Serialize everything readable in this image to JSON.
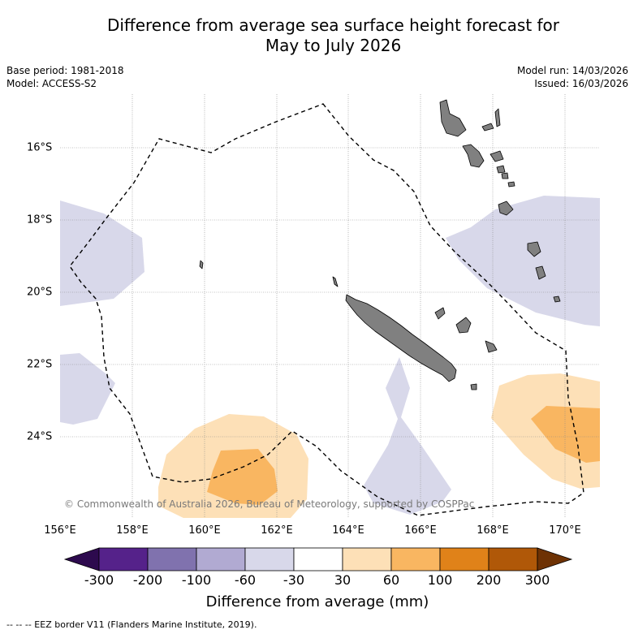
{
  "title_line1": "Difference from average sea surface height forecast for",
  "title_line2": "May to July 2026",
  "base_period": "Base period: 1981-2018",
  "model": "Model: ACCESS-S2",
  "model_run": "Model run: 14/03/2026",
  "issued": "Issued: 16/03/2026",
  "x_ticks": [
    "156°E",
    "158°E",
    "160°E",
    "162°E",
    "164°E",
    "166°E",
    "168°E",
    "170°E"
  ],
  "y_ticks": [
    "16°S",
    "18°S",
    "20°S",
    "22°S",
    "24°S"
  ],
  "copyright": "© Commonwealth of Australia 2026, Bureau of Meteorology, supported by COSPPac",
  "colorbar": {
    "labels": [
      "-300",
      "-200",
      "-100",
      "-60",
      "-30",
      "30",
      "60",
      "100",
      "200",
      "300"
    ],
    "colors": [
      "#2d0a4e",
      "#55228a",
      "#8072ae",
      "#b1aad2",
      "#d8d8ea",
      "#ffffff",
      "#fde0b7",
      "#f9b661",
      "#e08219",
      "#b05808",
      "#6e3204"
    ],
    "title": "Difference from average (mm)"
  },
  "eez_legend": "-- -- -- EEZ border V11 (Flanders Marine Institute, 2019).",
  "map_colors": {
    "land": "#808080",
    "neg_30_60": "#d8d8ea",
    "pos_30_60": "#fde0b7",
    "pos_60_100": "#f9b661"
  }
}
